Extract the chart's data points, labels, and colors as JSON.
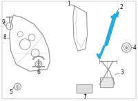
{
  "bg_color": "#ffffff",
  "border_color": "#cccccc",
  "highlight_color": "#29abe2",
  "part_color": "#999999",
  "line_color": "#666666",
  "label_color": "#111111",
  "figsize": [
    2.0,
    1.47
  ],
  "dpi": 100
}
